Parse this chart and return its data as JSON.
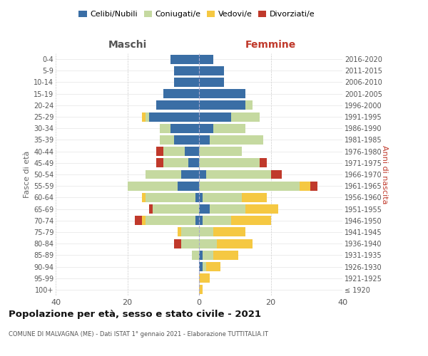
{
  "age_groups": [
    "100+",
    "95-99",
    "90-94",
    "85-89",
    "80-84",
    "75-79",
    "70-74",
    "65-69",
    "60-64",
    "55-59",
    "50-54",
    "45-49",
    "40-44",
    "35-39",
    "30-34",
    "25-29",
    "20-24",
    "15-19",
    "10-14",
    "5-9",
    "0-4"
  ],
  "birth_years": [
    "≤ 1920",
    "1921-1925",
    "1926-1930",
    "1931-1935",
    "1936-1940",
    "1941-1945",
    "1946-1950",
    "1951-1955",
    "1956-1960",
    "1961-1965",
    "1966-1970",
    "1971-1975",
    "1976-1980",
    "1981-1985",
    "1986-1990",
    "1991-1995",
    "1996-2000",
    "2001-2005",
    "2006-2010",
    "2011-2015",
    "2016-2020"
  ],
  "males": {
    "celibi": [
      0,
      0,
      0,
      0,
      0,
      0,
      1,
      0,
      1,
      6,
      5,
      3,
      4,
      7,
      8,
      14,
      12,
      10,
      7,
      7,
      8
    ],
    "coniugati": [
      0,
      0,
      0,
      2,
      5,
      5,
      14,
      13,
      14,
      14,
      10,
      7,
      6,
      4,
      3,
      1,
      0,
      0,
      0,
      0,
      0
    ],
    "vedovi": [
      0,
      0,
      0,
      0,
      0,
      1,
      1,
      0,
      1,
      0,
      0,
      0,
      0,
      0,
      0,
      1,
      0,
      0,
      0,
      0,
      0
    ],
    "divorziati": [
      0,
      0,
      0,
      0,
      2,
      0,
      2,
      1,
      0,
      0,
      0,
      2,
      2,
      0,
      0,
      0,
      0,
      0,
      0,
      0,
      0
    ]
  },
  "females": {
    "nubili": [
      0,
      0,
      1,
      1,
      0,
      0,
      1,
      3,
      1,
      0,
      2,
      0,
      0,
      3,
      4,
      9,
      13,
      13,
      7,
      7,
      4
    ],
    "coniugate": [
      0,
      0,
      1,
      3,
      5,
      4,
      8,
      10,
      11,
      28,
      18,
      17,
      12,
      15,
      9,
      8,
      2,
      0,
      0,
      0,
      0
    ],
    "vedove": [
      1,
      3,
      4,
      7,
      10,
      9,
      11,
      9,
      7,
      3,
      0,
      0,
      0,
      0,
      0,
      0,
      0,
      0,
      0,
      0,
      0
    ],
    "divorziate": [
      0,
      0,
      0,
      0,
      0,
      0,
      0,
      0,
      0,
      2,
      3,
      2,
      0,
      0,
      0,
      0,
      0,
      0,
      0,
      0,
      0
    ]
  },
  "colors": {
    "celibi_nubili": "#3a6ea5",
    "coniugati": "#c5d9a0",
    "vedovi": "#f5c842",
    "divorziati": "#c0392b"
  },
  "xlim": 40,
  "title": "Popolazione per età, sesso e stato civile - 2021",
  "subtitle": "COMUNE DI MALVAGNA (ME) - Dati ISTAT 1° gennaio 2021 - Elaborazione TUTTITALIA.IT",
  "ylabel_left": "Fasce di età",
  "ylabel_right": "Anni di nascita",
  "xlabel_left": "Maschi",
  "xlabel_right": "Femmine",
  "legend_labels": [
    "Celibi/Nubili",
    "Coniugati/e",
    "Vedovi/e",
    "Divorziati/e"
  ],
  "background_color": "#ffffff",
  "bar_height": 0.8
}
